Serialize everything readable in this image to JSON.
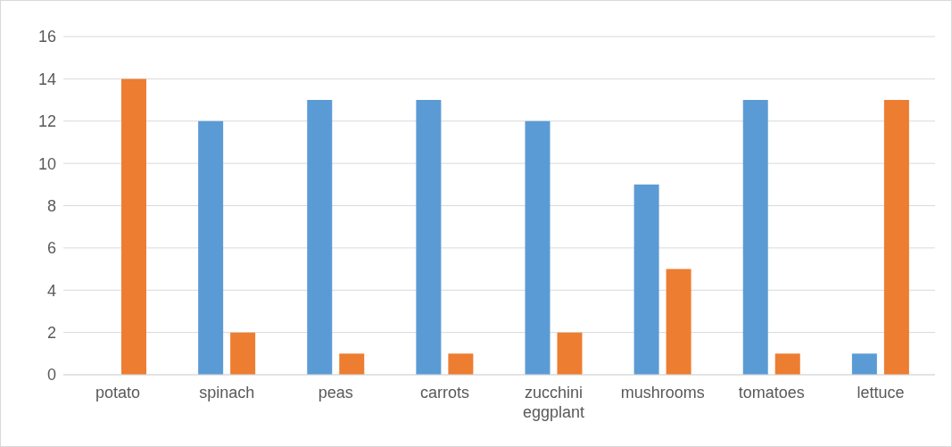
{
  "chart_data": {
    "type": "bar",
    "categories": [
      "potato",
      "spinach",
      "peas",
      "carrots",
      "zucchini eggplant",
      "mushrooms",
      "tomatoes",
      "lettuce"
    ],
    "series": [
      {
        "color": "#5b9bd5",
        "values": [
          0,
          12,
          13,
          13,
          12,
          9,
          13,
          1
        ]
      },
      {
        "color": "#ed7d31",
        "values": [
          14,
          2,
          1,
          1,
          2,
          5,
          1,
          13
        ]
      }
    ],
    "ylim": [
      0,
      16
    ],
    "yticks": [
      0,
      2,
      4,
      6,
      8,
      10,
      12,
      14,
      16
    ],
    "grid": "y",
    "legend": false
  }
}
